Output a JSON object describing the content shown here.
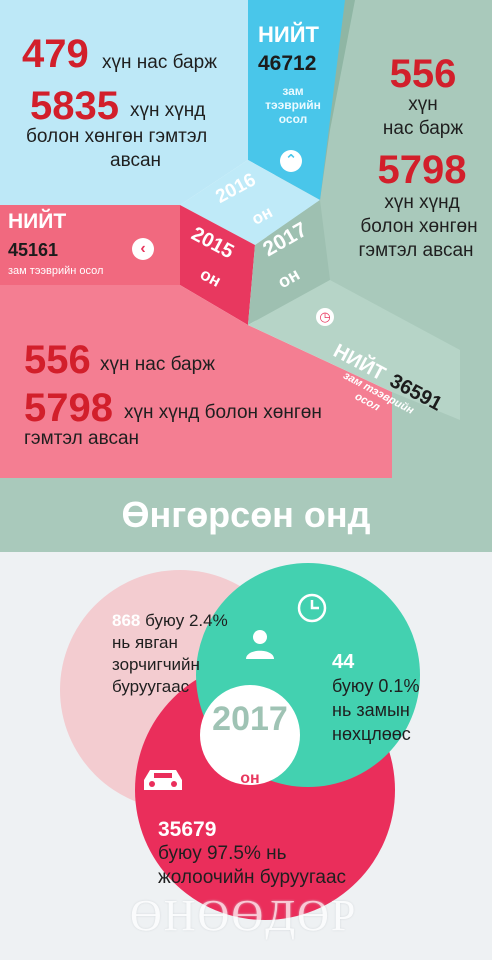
{
  "top": {
    "y2016": {
      "killed_num": "479",
      "killed_text": "хүн нас барж",
      "injured_num": "5835",
      "injured_text1": "хүн хүнд",
      "injured_text2": "болон хөнгөн гэмтэл",
      "injured_text3": "авсан",
      "total_label": "НИЙТ",
      "total_value": "46712",
      "total_sub1": "зам",
      "total_sub2": "тээврийн",
      "total_sub3": "осол",
      "year": "2016",
      "year_unit": "он"
    },
    "y2017": {
      "killed_num": "556",
      "killed_text1": "хүн",
      "killed_text2": "нас барж",
      "injured_num": "5798",
      "injured_text1": "хүн хүнд",
      "injured_text2": "болон хөнгөн",
      "injured_text3": "гэмтэл авсан",
      "total_label": "НИЙТ",
      "total_value": "36591",
      "total_sub1": "зам тээврийн",
      "total_sub2": "осол",
      "year": "2017",
      "year_unit": "он"
    },
    "y2015": {
      "total_label": "НИЙТ",
      "total_value": "45161",
      "total_sub": "зам тээврийн осол",
      "year": "2015",
      "year_unit": "он",
      "killed_num": "556",
      "killed_text": "хүн нас барж",
      "injured_num": "5798",
      "injured_text1": "хүн хүнд болон хөнгөн",
      "injured_text2": "гэмтэл авсан"
    },
    "banner": "Өнгөрсөн онд"
  },
  "venn": {
    "pedestrian": {
      "num": "868",
      "line1": "буюу 2.4%",
      "line2": "нь явган",
      "line3": "зорчигчийн",
      "line4": "буруугаас"
    },
    "road": {
      "num": "44",
      "line1": "буюу 0.1%",
      "line2": "нь замын",
      "line3": "нөхцлөөс"
    },
    "driver": {
      "num": "35679",
      "line1": "буюу 97.5% нь",
      "line2": "жолоочийн буруугаас"
    },
    "center_year": "2017",
    "center_unit": "он"
  },
  "logo": "ӨНӨӨДӨР",
  "colors": {
    "red": "#d21f2b",
    "pink": "#f1697f",
    "cyan": "#49c6ea",
    "sage": "#9fc3b4",
    "teal": "#4ccfb1",
    "crimson": "#e8385f"
  },
  "icons": [
    "chevron-up-icon",
    "chevron-left-icon",
    "clock-icon",
    "person-icon",
    "car-icon"
  ]
}
